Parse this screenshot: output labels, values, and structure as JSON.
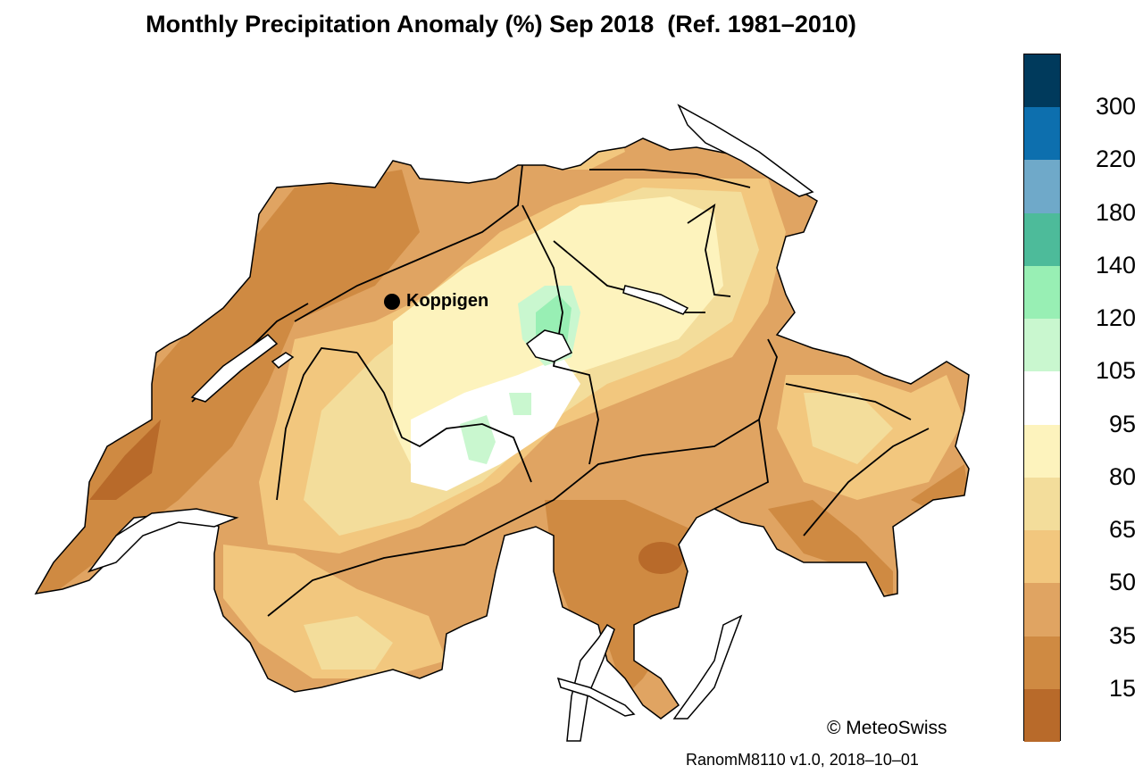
{
  "title": "Monthly Precipitation Anomaly (%) Sep 2018  (Ref. 1981–2010)",
  "station": {
    "name": "Koppigen"
  },
  "copyright": "© MeteoSwiss",
  "version": "RanomM8110 v1.0, 2018–10–01",
  "legend": {
    "labels": [
      "300",
      "220",
      "180",
      "140",
      "120",
      "105",
      "95",
      "80",
      "65",
      "50",
      "35",
      "15"
    ],
    "colors": [
      "#003a5c",
      "#0d6fae",
      "#6fa9c9",
      "#4dbb9a",
      "#98efb4",
      "#c9f7cf",
      "#ffffff",
      "#fdf3bd",
      "#f3dd9b",
      "#f2c77e",
      "#e0a462",
      "#cf8a42",
      "#b86a2a"
    ]
  }
}
